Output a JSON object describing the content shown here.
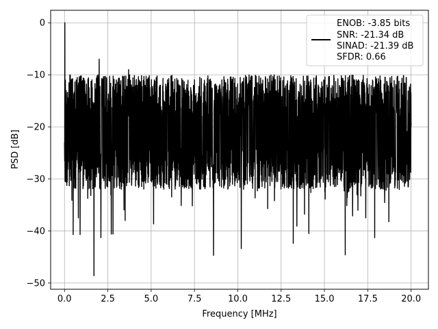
{
  "chart_data": {
    "type": "line",
    "xlabel": "Frequency [MHz]",
    "ylabel": "PSD [dB]",
    "xlim": [
      -0.8,
      21.0
    ],
    "ylim": [
      -51.2,
      2.4
    ],
    "xticks": [
      0.0,
      2.5,
      5.0,
      7.5,
      10.0,
      12.5,
      15.0,
      17.5,
      20.0
    ],
    "xtick_labels": [
      "0.0",
      "2.5",
      "5.0",
      "7.5",
      "10.0",
      "12.5",
      "15.0",
      "17.5",
      "20.0"
    ],
    "yticks": [
      0,
      -10,
      -20,
      -30,
      -40,
      -50
    ],
    "ytick_labels": [
      "0",
      "−10",
      "−20",
      "−30",
      "−40",
      "−50"
    ],
    "grid": true,
    "legend_position": "top-right",
    "legend_lines": [
      "ENOB: -3.85 bits",
      "SNR: -21.34 dB",
      "SINAD: -21.39 dB",
      "SFDR: 0.66"
    ],
    "series": [
      {
        "color": "#000000",
        "noise_band": {
          "typical_min_db": -30,
          "typical_max_db": -12
        },
        "points": [
          {
            "x": 0.0,
            "y": -23
          },
          {
            "x": 0.02,
            "y": 0.0
          },
          {
            "x": 0.05,
            "y": -11
          },
          {
            "x": 0.1,
            "y": -16
          },
          {
            "x": 0.15,
            "y": -24
          },
          {
            "x": 0.5,
            "y": -40.7
          },
          {
            "x": 0.8,
            "y": -37.5
          },
          {
            "x": 0.9,
            "y": -40.7
          },
          {
            "x": 1.7,
            "y": -48.6
          },
          {
            "x": 2.0,
            "y": -7.0
          },
          {
            "x": 2.1,
            "y": -41.3
          },
          {
            "x": 2.7,
            "y": -40.6
          },
          {
            "x": 2.8,
            "y": -40.6
          },
          {
            "x": 3.7,
            "y": -9.0
          },
          {
            "x": 3.5,
            "y": -38.0
          },
          {
            "x": 8.6,
            "y": -44.7
          },
          {
            "x": 10.2,
            "y": -43.4
          },
          {
            "x": 13.2,
            "y": -42.4
          },
          {
            "x": 14.1,
            "y": -40.5
          },
          {
            "x": 16.2,
            "y": -44.6
          },
          {
            "x": 17.9,
            "y": -41.3
          },
          {
            "x": 12.1,
            "y": -10.0
          },
          {
            "x": 20.0,
            "y": -20.0
          }
        ]
      }
    ]
  }
}
